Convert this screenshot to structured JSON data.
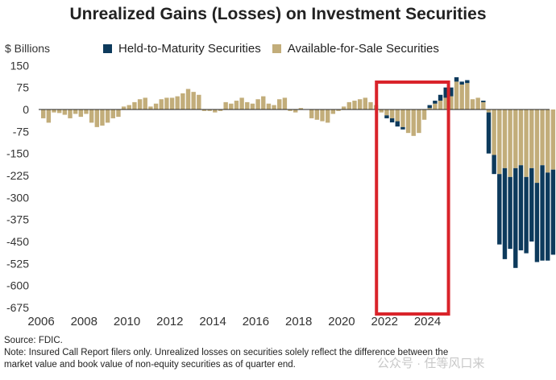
{
  "header": {
    "title": "Unrealized Gains (Losses) on Investment Securities",
    "unit": "$ Billions"
  },
  "legend": [
    {
      "label": "Held-to-Maturity Securities",
      "color": "#0d3a5c"
    },
    {
      "label": "Available-for-Sale Securities",
      "color": "#c2ad7a"
    }
  ],
  "highlight_color": "#d9232a",
  "footer": {
    "source": "Source: FDIC.",
    "note_line1": "Note: Insured Call Report filers only. Unrealized losses on securities solely reflect the difference between the",
    "note_line2": "market value and book value of non-equity securities as of quarter end."
  },
  "watermark": "公众号 · 任等风口来",
  "chart_data": {
    "type": "bar",
    "stacked": true,
    "ylim": [
      -675,
      150
    ],
    "yticks": [
      150,
      75,
      0,
      -75,
      -150,
      -225,
      -300,
      -375,
      -450,
      -525,
      -600,
      -675
    ],
    "xticks": [
      "2006",
      "2008",
      "2010",
      "2012",
      "2014",
      "2016",
      "2018",
      "2020",
      "2022",
      "2024"
    ],
    "x_start": 2006,
    "highlight_range": [
      "2022Q1",
      "2024Q2"
    ],
    "series": [
      {
        "name": "Held-to-Maturity Securities",
        "values": [
          0,
          0,
          0,
          0,
          0,
          0,
          0,
          0,
          0,
          0,
          0,
          0,
          0,
          0,
          0,
          0,
          0,
          0,
          0,
          0,
          0,
          0,
          0,
          0,
          0,
          0,
          0,
          0,
          0,
          0,
          0,
          0,
          0,
          0,
          0,
          0,
          0,
          0,
          0,
          0,
          0,
          0,
          0,
          0,
          0,
          0,
          0,
          0,
          0,
          0,
          0,
          0,
          0,
          0,
          0,
          0,
          0,
          0,
          0,
          0,
          0,
          0,
          0,
          0,
          -10,
          -14,
          -18,
          -8,
          0,
          0,
          0,
          0,
          10,
          10,
          20,
          35,
          30,
          15,
          10,
          10,
          0,
          0,
          -5,
          -140,
          -65,
          -240,
          -310,
          -245,
          -340,
          -290,
          -260,
          -250,
          -270,
          -325,
          -300,
          -290
        ]
      },
      {
        "name": "Available-for-Sale Securities",
        "values": [
          -30,
          -45,
          -10,
          -12,
          -18,
          -30,
          -15,
          -25,
          -15,
          -45,
          -60,
          -55,
          -45,
          -30,
          -25,
          10,
          15,
          25,
          35,
          40,
          10,
          20,
          35,
          40,
          40,
          45,
          55,
          70,
          60,
          50,
          -5,
          -5,
          -10,
          -5,
          25,
          20,
          30,
          40,
          25,
          20,
          35,
          45,
          20,
          15,
          35,
          40,
          -5,
          -10,
          5,
          0,
          -30,
          -35,
          -40,
          -45,
          -15,
          -5,
          10,
          25,
          30,
          35,
          40,
          25,
          15,
          -10,
          -20,
          -30,
          -40,
          -60,
          -80,
          -90,
          -80,
          -35,
          5,
          20,
          30,
          40,
          45,
          95,
          85,
          90,
          35,
          40,
          30,
          -10,
          -155,
          -220,
          -200,
          -230,
          -200,
          -190,
          -230,
          -200,
          -250,
          -190,
          -215,
          -205
        ]
      }
    ]
  }
}
